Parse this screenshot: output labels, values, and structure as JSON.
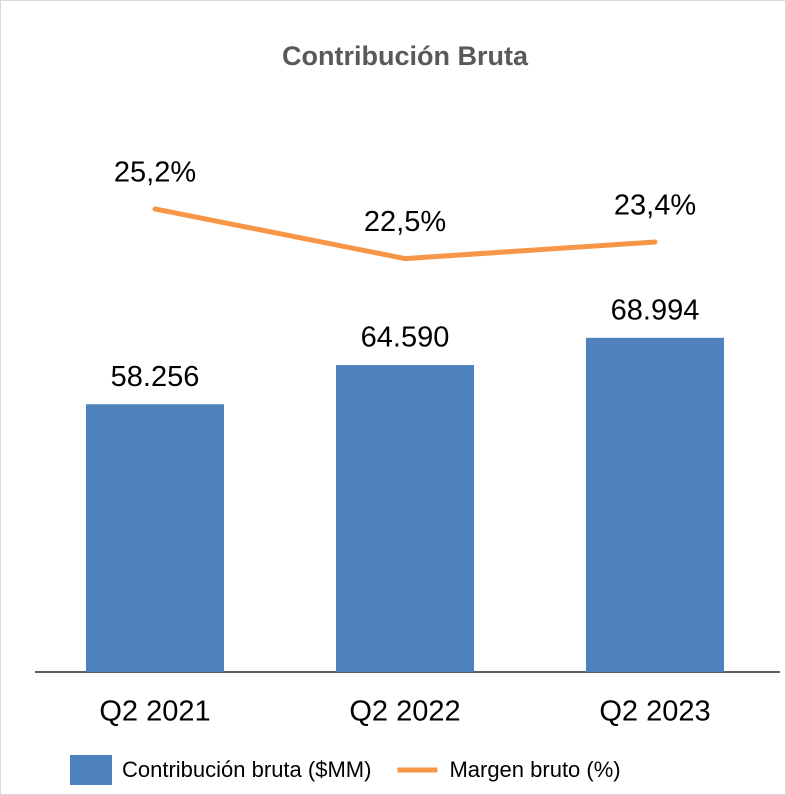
{
  "chart_data": {
    "type": "bar_line",
    "title": "Contribución Bruta",
    "categories": [
      "Q2 2021",
      "Q2 2022",
      "Q2 2023"
    ],
    "series": [
      {
        "name": "Contribución bruta ($MM)",
        "color": "#4f81bd",
        "type": "bar",
        "values": [
          58256,
          64590,
          68994
        ],
        "value_labels": [
          "58.256",
          "64.590",
          "68.994"
        ]
      },
      {
        "name": "Margen bruto (%)",
        "color": "#f79646",
        "type": "line",
        "axis": "y2",
        "values": [
          25.2,
          22.5,
          23.4
        ],
        "value_labels": [
          "25,2%",
          "22,5%",
          "23,4%"
        ]
      }
    ],
    "ylim": [
      15000,
      110000
    ],
    "y2lim": [
      0,
      32
    ],
    "legend": "bottom"
  }
}
